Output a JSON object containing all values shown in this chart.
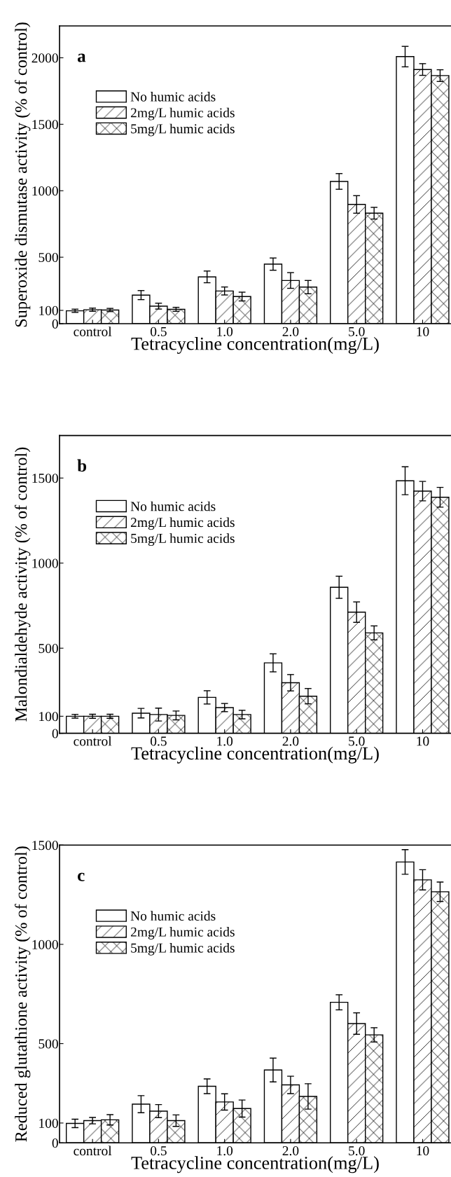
{
  "chart_data": [
    {
      "type": "bar",
      "title": "a",
      "xlabel": "Tetracycline concentration(mg/L)",
      "ylabel": "Superoxide dismutase activity (% of control)",
      "categories": [
        "control",
        "0.5",
        "1.0",
        "2.0",
        "5.0",
        "10"
      ],
      "ylim": [
        0,
        2240
      ],
      "yticks": [
        0,
        100,
        500,
        1000,
        1500,
        2000
      ],
      "legend": "top left",
      "grid": false,
      "series": [
        {
          "name": "No humic acids",
          "color": "#ffffff",
          "values": [
            97,
            215,
            352,
            448,
            1070,
            2009
          ],
          "errors": [
            12,
            34,
            44,
            46,
            59,
            77
          ]
        },
        {
          "name": "2mg/L humic acids",
          "color": "#000000",
          "values": [
            105,
            132,
            246,
            325,
            897,
            1912
          ],
          "errors": [
            12,
            22,
            30,
            59,
            66,
            44
          ]
        },
        {
          "name": "5mg/L humic acids",
          "color": "#000000",
          "values": [
            103,
            108,
            204,
            275,
            831,
            1866
          ],
          "errors": [
            12,
            15,
            33,
            50,
            44,
            44
          ]
        }
      ]
    },
    {
      "type": "bar",
      "title": "b",
      "xlabel": "Tetracycline concentration(mg/L)",
      "ylabel": "Malondialdehyde activity (% of control)",
      "categories": [
        "control",
        "0.5",
        "1.0",
        "2.0",
        "5.0",
        "10"
      ],
      "ylim": [
        0,
        1750
      ],
      "yticks": [
        0,
        100,
        500,
        1000,
        1500
      ],
      "legend": "top left",
      "grid": false,
      "series": [
        {
          "name": "No humic acids",
          "color": "#ffffff",
          "values": [
            100,
            118,
            211,
            414,
            858,
            1484
          ],
          "errors": [
            11,
            28,
            39,
            53,
            65,
            82
          ]
        },
        {
          "name": "2mg/L humic acids",
          "color": "#000000",
          "values": [
            100,
            110,
            151,
            297,
            712,
            1423
          ],
          "errors": [
            12,
            38,
            24,
            48,
            60,
            57
          ]
        },
        {
          "name": "5mg/L humic acids",
          "color": "#000000",
          "values": [
            100,
            105,
            110,
            218,
            590,
            1387
          ],
          "errors": [
            12,
            26,
            25,
            45,
            41,
            58
          ]
        }
      ]
    },
    {
      "type": "bar",
      "title": "c",
      "xlabel": "Tetracycline concentration(mg/L)",
      "ylabel": "Reduced glutathione activity (% of control)",
      "categories": [
        "control",
        "0.5",
        "1.0",
        "2.0",
        "5.0",
        "10"
      ],
      "ylim": [
        0,
        1500
      ],
      "yticks": [
        0,
        100,
        500,
        1000,
        1500
      ],
      "legend": "top left",
      "grid": false,
      "series": [
        {
          "name": "No humic acids",
          "color": "#ffffff",
          "values": [
            98,
            195,
            285,
            367,
            708,
            1415
          ],
          "errors": [
            21,
            43,
            37,
            60,
            38,
            62
          ]
        },
        {
          "name": "2mg/L humic acids",
          "color": "#000000",
          "values": [
            112,
            160,
            206,
            292,
            601,
            1325
          ],
          "errors": [
            16,
            33,
            41,
            44,
            54,
            51
          ]
        },
        {
          "name": "5mg/L humic acids",
          "color": "#000000",
          "values": [
            116,
            112,
            173,
            234,
            544,
            1265
          ],
          "errors": [
            26,
            29,
            43,
            64,
            36,
            49
          ]
        }
      ]
    }
  ]
}
